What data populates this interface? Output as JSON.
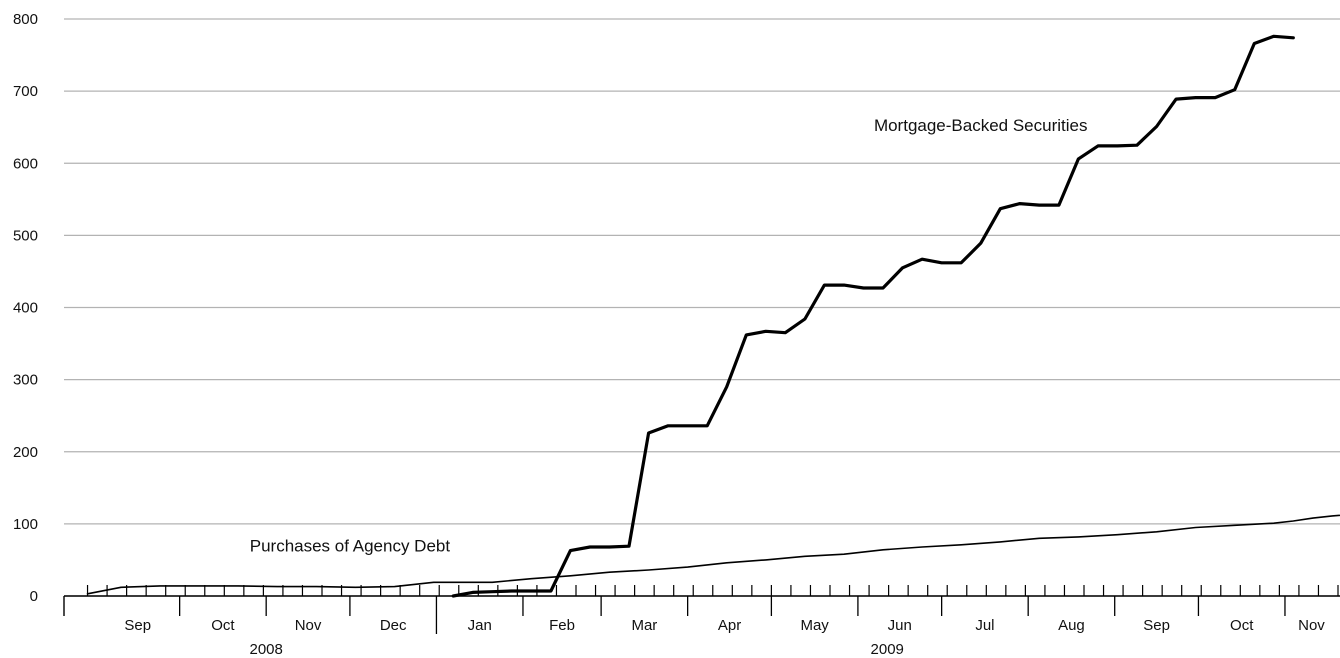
{
  "chart_data": {
    "type": "line",
    "title": "",
    "xlabel": "",
    "ylabel": "",
    "ylim": [
      0,
      800
    ],
    "yticks": [
      "0",
      "100",
      "200",
      "300",
      "400",
      "500",
      "600",
      "700",
      "800"
    ],
    "grid": true,
    "x_axis": {
      "start": "2008-08-22",
      "end": "2009-11-20",
      "months": [
        {
          "label": "Sep",
          "start": "2008-09-01",
          "end": "2008-10-01"
        },
        {
          "label": "Oct",
          "start": "2008-10-01",
          "end": "2008-11-01"
        },
        {
          "label": "Nov",
          "start": "2008-11-01",
          "end": "2008-12-01"
        },
        {
          "label": "Dec",
          "start": "2008-12-01",
          "end": "2009-01-01"
        },
        {
          "label": "Jan",
          "start": "2009-01-01",
          "end": "2009-02-01"
        },
        {
          "label": "Feb",
          "start": "2009-02-01",
          "end": "2009-03-01"
        },
        {
          "label": "Mar",
          "start": "2009-03-01",
          "end": "2009-04-01"
        },
        {
          "label": "Apr",
          "start": "2009-04-01",
          "end": "2009-05-01"
        },
        {
          "label": "May",
          "start": "2009-05-01",
          "end": "2009-06-01"
        },
        {
          "label": "Jun",
          "start": "2009-06-01",
          "end": "2009-07-01"
        },
        {
          "label": "Jul",
          "start": "2009-07-01",
          "end": "2009-08-01"
        },
        {
          "label": "Aug",
          "start": "2009-08-01",
          "end": "2009-09-01"
        },
        {
          "label": "Sep",
          "start": "2009-09-01",
          "end": "2009-10-01"
        },
        {
          "label": "Oct",
          "start": "2009-10-01",
          "end": "2009-11-01"
        },
        {
          "label": "Nov",
          "start": "2009-11-01",
          "end": "2009-11-20"
        }
      ],
      "years": [
        {
          "label": "2008",
          "start": "2008-09-01",
          "end": "2009-01-01"
        },
        {
          "label": "2009",
          "start": "2009-01-01",
          "end": "2009-11-20"
        }
      ]
    },
    "series": [
      {
        "name": "Mortgage-Backed Securities",
        "label_anchor": {
          "date": "2009-07-15",
          "value": 645
        },
        "stroke_width": 3.2,
        "color": "#000000",
        "points": [
          [
            "2009-01-07",
            0
          ],
          [
            "2009-01-14",
            5
          ],
          [
            "2009-01-21",
            6
          ],
          [
            "2009-01-28",
            7
          ],
          [
            "2009-02-04",
            7
          ],
          [
            "2009-02-11",
            7
          ],
          [
            "2009-02-18",
            63
          ],
          [
            "2009-02-25",
            68
          ],
          [
            "2009-03-04",
            68
          ],
          [
            "2009-03-11",
            69
          ],
          [
            "2009-03-18",
            226
          ],
          [
            "2009-03-25",
            236
          ],
          [
            "2009-04-01",
            236
          ],
          [
            "2009-04-08",
            236
          ],
          [
            "2009-04-15",
            290
          ],
          [
            "2009-04-22",
            362
          ],
          [
            "2009-04-29",
            367
          ],
          [
            "2009-05-06",
            365
          ],
          [
            "2009-05-13",
            384
          ],
          [
            "2009-05-20",
            431
          ],
          [
            "2009-05-27",
            431
          ],
          [
            "2009-06-03",
            427
          ],
          [
            "2009-06-10",
            427
          ],
          [
            "2009-06-17",
            455
          ],
          [
            "2009-06-24",
            467
          ],
          [
            "2009-07-01",
            462
          ],
          [
            "2009-07-08",
            462
          ],
          [
            "2009-07-15",
            489
          ],
          [
            "2009-07-22",
            537
          ],
          [
            "2009-07-29",
            544
          ],
          [
            "2009-08-05",
            542
          ],
          [
            "2009-08-12",
            542
          ],
          [
            "2009-08-19",
            606
          ],
          [
            "2009-08-26",
            624
          ],
          [
            "2009-09-02",
            624
          ],
          [
            "2009-09-09",
            625
          ],
          [
            "2009-09-16",
            651
          ],
          [
            "2009-09-23",
            689
          ],
          [
            "2009-09-30",
            691
          ],
          [
            "2009-10-07",
            691
          ],
          [
            "2009-10-14",
            702
          ],
          [
            "2009-10-21",
            766
          ],
          [
            "2009-10-28",
            776
          ],
          [
            "2009-11-04",
            774
          ]
        ]
      },
      {
        "name": "Purchases of Agency Debt",
        "label_anchor": {
          "date": "2008-12-01",
          "value": 62
        },
        "stroke_width": 1.6,
        "color": "#000000",
        "points": [
          [
            "2008-08-29",
            3
          ],
          [
            "2008-09-10",
            12
          ],
          [
            "2008-09-24",
            14
          ],
          [
            "2008-10-08",
            14
          ],
          [
            "2008-10-22",
            14
          ],
          [
            "2008-11-05",
            13
          ],
          [
            "2008-11-19",
            13
          ],
          [
            "2008-12-03",
            12
          ],
          [
            "2008-12-17",
            13
          ],
          [
            "2008-12-31",
            19
          ],
          [
            "2009-01-07",
            19
          ],
          [
            "2009-01-21",
            19
          ],
          [
            "2009-02-04",
            24
          ],
          [
            "2009-02-18",
            28
          ],
          [
            "2009-03-04",
            33
          ],
          [
            "2009-03-18",
            36
          ],
          [
            "2009-04-01",
            40
          ],
          [
            "2009-04-15",
            46
          ],
          [
            "2009-04-29",
            50
          ],
          [
            "2009-05-13",
            55
          ],
          [
            "2009-05-27",
            58
          ],
          [
            "2009-06-10",
            64
          ],
          [
            "2009-06-24",
            68
          ],
          [
            "2009-07-08",
            71
          ],
          [
            "2009-07-22",
            75
          ],
          [
            "2009-08-05",
            80
          ],
          [
            "2009-08-19",
            82
          ],
          [
            "2009-09-02",
            85
          ],
          [
            "2009-09-16",
            89
          ],
          [
            "2009-09-30",
            95
          ],
          [
            "2009-10-14",
            98
          ],
          [
            "2009-10-28",
            101
          ],
          [
            "2009-11-04",
            104
          ],
          [
            "2009-11-11",
            108
          ],
          [
            "2009-11-18",
            111
          ],
          [
            "2009-12-02",
            115
          ]
        ]
      }
    ]
  }
}
